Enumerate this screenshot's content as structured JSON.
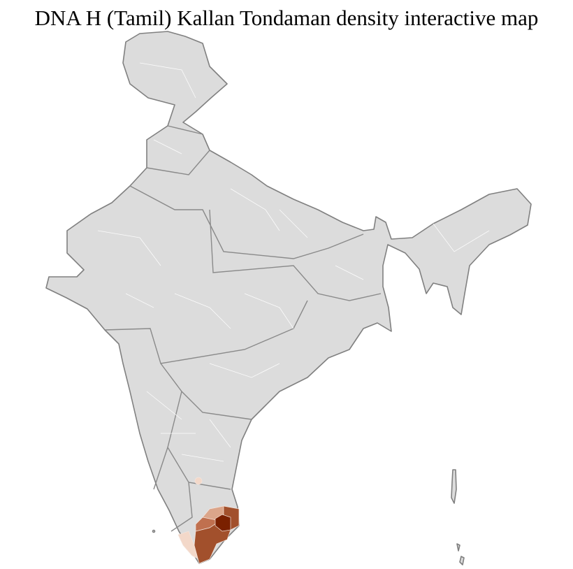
{
  "title": "DNA H (Tamil) Kallan Tondaman density interactive map",
  "map": {
    "region": "India",
    "type": "choropleth",
    "base_color": "#dcdcdc",
    "border_color": "#808080",
    "density_scale_colors": [
      "#f3d8c9",
      "#dba58a",
      "#c0704f",
      "#a2502c",
      "#7a2000"
    ],
    "highlighted_regions": [
      {
        "name": "Tamil Nadu (central-east)",
        "level": "highest",
        "color": "#7a2000"
      },
      {
        "name": "Tamil Nadu (south)",
        "level": "high",
        "color": "#a2502c"
      },
      {
        "name": "Tamil Nadu (west)",
        "level": "medium",
        "color": "#c0704f"
      },
      {
        "name": "Kerala (south)",
        "level": "low",
        "color": "#f3d8c9"
      },
      {
        "name": "Karnataka (single district)",
        "level": "low",
        "color": "#f3d8c9"
      }
    ]
  }
}
